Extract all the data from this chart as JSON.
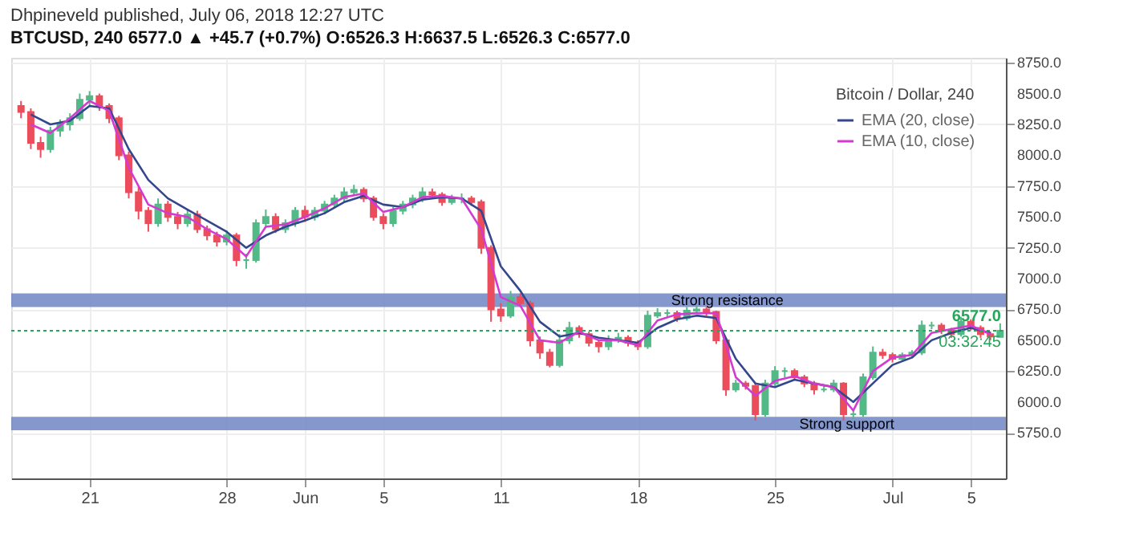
{
  "chart_data": {
    "type": "candlestick",
    "title": "Dhpineveld published, July 06, 2018 12:27 UTC",
    "subtitle": "BTCUSD, 240  6577.0 ▲ +45.7 (+0.7%)  O:6526.3 H:6637.5 L:6526.3 C:6577.0",
    "legend_title": "Bitcoin / Dollar, 240",
    "legend": "top right",
    "grid": true,
    "x": [
      "2018-05-17T12:00",
      "2018-05-18T00:00",
      "2018-05-18T12:00",
      "2018-05-19T00:00",
      "2018-05-19T12:00",
      "2018-05-20T00:00",
      "2018-05-20T12:00",
      "2018-05-21T00:00",
      "2018-05-21T12:00",
      "2018-05-22T00:00",
      "2018-05-22T12:00",
      "2018-05-23T00:00",
      "2018-05-23T12:00",
      "2018-05-24T00:00",
      "2018-05-24T12:00",
      "2018-05-25T00:00",
      "2018-05-25T12:00",
      "2018-05-26T00:00",
      "2018-05-26T12:00",
      "2018-05-27T00:00",
      "2018-05-27T12:00",
      "2018-05-28T00:00",
      "2018-05-28T12:00",
      "2018-05-29T00:00",
      "2018-05-29T12:00",
      "2018-05-30T00:00",
      "2018-05-30T12:00",
      "2018-05-31T00:00",
      "2018-05-31T12:00",
      "2018-06-01T00:00",
      "2018-06-01T12:00",
      "2018-06-02T00:00",
      "2018-06-02T12:00",
      "2018-06-03T00:00",
      "2018-06-03T12:00",
      "2018-06-04T00:00",
      "2018-06-04T12:00",
      "2018-06-05T00:00",
      "2018-06-05T12:00",
      "2018-06-06T00:00",
      "2018-06-06T12:00",
      "2018-06-07T00:00",
      "2018-06-07T12:00",
      "2018-06-08T00:00",
      "2018-06-08T12:00",
      "2018-06-09T00:00",
      "2018-06-09T12:00",
      "2018-06-10T00:00",
      "2018-06-10T12:00",
      "2018-06-11T00:00",
      "2018-06-11T12:00",
      "2018-06-12T00:00",
      "2018-06-12T12:00",
      "2018-06-13T00:00",
      "2018-06-13T12:00",
      "2018-06-14T00:00",
      "2018-06-14T12:00",
      "2018-06-15T00:00",
      "2018-06-15T12:00",
      "2018-06-16T00:00",
      "2018-06-16T12:00",
      "2018-06-17T00:00",
      "2018-06-17T12:00",
      "2018-06-18T00:00",
      "2018-06-18T12:00",
      "2018-06-19T00:00",
      "2018-06-19T12:00",
      "2018-06-20T00:00",
      "2018-06-20T12:00",
      "2018-06-21T00:00",
      "2018-06-21T12:00",
      "2018-06-22T00:00",
      "2018-06-22T12:00",
      "2018-06-23T00:00",
      "2018-06-23T12:00",
      "2018-06-24T00:00",
      "2018-06-24T12:00",
      "2018-06-25T00:00",
      "2018-06-25T12:00",
      "2018-06-26T00:00",
      "2018-06-26T12:00",
      "2018-06-27T00:00",
      "2018-06-27T12:00",
      "2018-06-28T00:00",
      "2018-06-28T12:00",
      "2018-06-29T00:00",
      "2018-06-29T12:00",
      "2018-06-30T00:00",
      "2018-06-30T12:00",
      "2018-07-01T00:00",
      "2018-07-01T12:00",
      "2018-07-02T00:00",
      "2018-07-02T12:00",
      "2018-07-03T00:00",
      "2018-07-03T12:00",
      "2018-07-04T00:00",
      "2018-07-04T12:00",
      "2018-07-05T00:00",
      "2018-07-05T12:00",
      "2018-07-06T00:00",
      "2018-07-06T12:00"
    ],
    "ohlc": [
      [
        8400,
        8440,
        8300,
        8350
      ],
      [
        8350,
        8380,
        8050,
        8100
      ],
      [
        8100,
        8150,
        7980,
        8050
      ],
      [
        8050,
        8230,
        8020,
        8200
      ],
      [
        8200,
        8290,
        8150,
        8250
      ],
      [
        8250,
        8340,
        8200,
        8300
      ],
      [
        8300,
        8500,
        8280,
        8450
      ],
      [
        8450,
        8520,
        8400,
        8480
      ],
      [
        8480,
        8500,
        8360,
        8400
      ],
      [
        8400,
        8420,
        8260,
        8300
      ],
      [
        8300,
        8320,
        7960,
        8000
      ],
      [
        8000,
        8030,
        7650,
        7700
      ],
      [
        7700,
        7740,
        7480,
        7550
      ],
      [
        7550,
        7580,
        7380,
        7450
      ],
      [
        7450,
        7650,
        7420,
        7600
      ],
      [
        7600,
        7630,
        7460,
        7500
      ],
      [
        7500,
        7540,
        7400,
        7450
      ],
      [
        7450,
        7560,
        7420,
        7520
      ],
      [
        7520,
        7550,
        7370,
        7400
      ],
      [
        7400,
        7430,
        7310,
        7350
      ],
      [
        7350,
        7380,
        7260,
        7300
      ],
      [
        7300,
        7390,
        7270,
        7350
      ],
      [
        7350,
        7370,
        7100,
        7150
      ],
      [
        7150,
        7200,
        7080,
        7150
      ],
      [
        7150,
        7480,
        7130,
        7450
      ],
      [
        7450,
        7560,
        7420,
        7500
      ],
      [
        7500,
        7530,
        7370,
        7400
      ],
      [
        7400,
        7480,
        7370,
        7450
      ],
      [
        7450,
        7580,
        7420,
        7550
      ],
      [
        7550,
        7590,
        7460,
        7500
      ],
      [
        7500,
        7580,
        7470,
        7550
      ],
      [
        7550,
        7630,
        7520,
        7600
      ],
      [
        7600,
        7680,
        7570,
        7650
      ],
      [
        7650,
        7740,
        7620,
        7700
      ],
      [
        7700,
        7760,
        7670,
        7720
      ],
      [
        7720,
        7740,
        7620,
        7650
      ],
      [
        7650,
        7670,
        7470,
        7500
      ],
      [
        7500,
        7530,
        7400,
        7450
      ],
      [
        7450,
        7580,
        7420,
        7550
      ],
      [
        7550,
        7630,
        7520,
        7600
      ],
      [
        7600,
        7680,
        7570,
        7650
      ],
      [
        7650,
        7740,
        7620,
        7700
      ],
      [
        7700,
        7730,
        7650,
        7680
      ],
      [
        7680,
        7700,
        7590,
        7620
      ],
      [
        7620,
        7680,
        7600,
        7650
      ],
      [
        7650,
        7690,
        7610,
        7650
      ],
      [
        7650,
        7670,
        7590,
        7620
      ],
      [
        7620,
        7640,
        7200,
        7250
      ],
      [
        7250,
        7270,
        6650,
        6750
      ],
      [
        6750,
        6800,
        6650,
        6700
      ],
      [
        6700,
        6900,
        6680,
        6850
      ],
      [
        6850,
        6880,
        6770,
        6800
      ],
      [
        6800,
        6820,
        6450,
        6500
      ],
      [
        6500,
        6530,
        6350,
        6400
      ],
      [
        6400,
        6430,
        6280,
        6300
      ],
      [
        6300,
        6550,
        6280,
        6500
      ],
      [
        6500,
        6650,
        6470,
        6600
      ],
      [
        6600,
        6620,
        6520,
        6550
      ],
      [
        6550,
        6570,
        6450,
        6480
      ],
      [
        6480,
        6500,
        6400,
        6450
      ],
      [
        6450,
        6540,
        6420,
        6500
      ],
      [
        6500,
        6560,
        6480,
        6520
      ],
      [
        6520,
        6540,
        6450,
        6480
      ],
      [
        6480,
        6500,
        6420,
        6450
      ],
      [
        6450,
        6740,
        6430,
        6700
      ],
      [
        6700,
        6760,
        6680,
        6720
      ],
      [
        6720,
        6750,
        6690,
        6720
      ],
      [
        6720,
        6740,
        6650,
        6680
      ],
      [
        6680,
        6770,
        6660,
        6740
      ],
      [
        6740,
        6780,
        6720,
        6750
      ],
      [
        6750,
        6770,
        6700,
        6730
      ],
      [
        6730,
        6740,
        6470,
        6500
      ],
      [
        6500,
        6520,
        6050,
        6100
      ],
      [
        6100,
        6180,
        6080,
        6150
      ],
      [
        6150,
        6170,
        6100,
        6130
      ],
      [
        6130,
        6150,
        5850,
        5900
      ],
      [
        5900,
        6180,
        5880,
        6150
      ],
      [
        6150,
        6290,
        6130,
        6250
      ],
      [
        6250,
        6280,
        6200,
        6250
      ],
      [
        6250,
        6270,
        6180,
        6200
      ],
      [
        6200,
        6220,
        6120,
        6150
      ],
      [
        6150,
        6170,
        6060,
        6100
      ],
      [
        6100,
        6140,
        6080,
        6100
      ],
      [
        6100,
        6180,
        6080,
        6150
      ],
      [
        6150,
        6160,
        5850,
        5900
      ],
      [
        5900,
        5930,
        5860,
        5900
      ],
      [
        5900,
        6230,
        5880,
        6200
      ],
      [
        6200,
        6450,
        6180,
        6400
      ],
      [
        6400,
        6430,
        6350,
        6380
      ],
      [
        6380,
        6400,
        6320,
        6350
      ],
      [
        6350,
        6400,
        6330,
        6380
      ],
      [
        6380,
        6420,
        6360,
        6400
      ],
      [
        6400,
        6660,
        6380,
        6620
      ],
      [
        6620,
        6650,
        6590,
        6620
      ],
      [
        6620,
        6640,
        6550,
        6580
      ],
      [
        6580,
        6600,
        6520,
        6550
      ],
      [
        6550,
        6690,
        6530,
        6650
      ],
      [
        6650,
        6670,
        6580,
        6600
      ],
      [
        6600,
        6620,
        6520,
        6550
      ],
      [
        6550,
        6570,
        6500,
        6530
      ],
      [
        6526.3,
        6637.5,
        6526.3,
        6577.0
      ]
    ],
    "series": [
      {
        "name": "EMA (20, close)",
        "type": "line",
        "color": "#34468c",
        "x": [
          "2018-05-18",
          "2018-05-19",
          "2018-05-20",
          "2018-05-21",
          "2018-05-22",
          "2018-05-23",
          "2018-05-24",
          "2018-05-25",
          "2018-05-26",
          "2018-05-27",
          "2018-05-28",
          "2018-05-29",
          "2018-05-30",
          "2018-05-31",
          "2018-06-01",
          "2018-06-02",
          "2018-06-03",
          "2018-06-04",
          "2018-06-05",
          "2018-06-06",
          "2018-06-07",
          "2018-06-08",
          "2018-06-09",
          "2018-06-10",
          "2018-06-11",
          "2018-06-12",
          "2018-06-13",
          "2018-06-14",
          "2018-06-15",
          "2018-06-16",
          "2018-06-17",
          "2018-06-18",
          "2018-06-19",
          "2018-06-20",
          "2018-06-21",
          "2018-06-22",
          "2018-06-23",
          "2018-06-24",
          "2018-06-25",
          "2018-06-26",
          "2018-06-27",
          "2018-06-28",
          "2018-06-29",
          "2018-06-30",
          "2018-07-01",
          "2018-07-02",
          "2018-07-03",
          "2018-07-04",
          "2018-07-05",
          "2018-07-06"
        ],
        "values": [
          8330,
          8250,
          8280,
          8400,
          8380,
          8050,
          7800,
          7650,
          7560,
          7470,
          7380,
          7250,
          7350,
          7420,
          7470,
          7530,
          7620,
          7670,
          7600,
          7580,
          7640,
          7660,
          7650,
          7550,
          7100,
          6900,
          6650,
          6530,
          6560,
          6520,
          6500,
          6480,
          6600,
          6670,
          6700,
          6680,
          6350,
          6150,
          6120,
          6180,
          6150,
          6120,
          6000,
          6150,
          6300,
          6360,
          6500,
          6560,
          6600,
          6560
        ]
      },
      {
        "name": "EMA (10, close)",
        "type": "line",
        "color": "#d23ad2",
        "x": [
          "2018-05-18",
          "2018-05-19",
          "2018-05-20",
          "2018-05-21",
          "2018-05-22",
          "2018-05-23",
          "2018-05-24",
          "2018-05-25",
          "2018-05-26",
          "2018-05-27",
          "2018-05-28",
          "2018-05-29",
          "2018-05-30",
          "2018-05-31",
          "2018-06-01",
          "2018-06-02",
          "2018-06-03",
          "2018-06-04",
          "2018-06-05",
          "2018-06-06",
          "2018-06-07",
          "2018-06-08",
          "2018-06-09",
          "2018-06-10",
          "2018-06-11",
          "2018-06-12",
          "2018-06-13",
          "2018-06-14",
          "2018-06-15",
          "2018-06-16",
          "2018-06-17",
          "2018-06-18",
          "2018-06-19",
          "2018-06-20",
          "2018-06-21",
          "2018-06-22",
          "2018-06-23",
          "2018-06-24",
          "2018-06-25",
          "2018-06-26",
          "2018-06-27",
          "2018-06-28",
          "2018-06-29",
          "2018-06-30",
          "2018-07-01",
          "2018-07-02",
          "2018-07-03",
          "2018-07-04",
          "2018-07-05",
          "2018-07-06"
        ],
        "values": [
          8250,
          8180,
          8300,
          8440,
          8360,
          7900,
          7600,
          7530,
          7500,
          7400,
          7320,
          7180,
          7420,
          7440,
          7500,
          7570,
          7660,
          7690,
          7540,
          7580,
          7660,
          7670,
          7650,
          7400,
          6850,
          6780,
          6500,
          6480,
          6570,
          6500,
          6500,
          6460,
          6660,
          6710,
          6720,
          6720,
          6200,
          6050,
          6170,
          6210,
          6150,
          6120,
          5930,
          6250,
          6360,
          6380,
          6560,
          6590,
          6620,
          6550
        ]
      }
    ],
    "bands": [
      {
        "axis": "y",
        "from": 6770,
        "to": 6880,
        "label": "Strong resistance",
        "color": "#6f86c6"
      },
      {
        "axis": "y",
        "from": 5770,
        "to": 5880,
        "label": "Strong support",
        "color": "#6f86c6"
      }
    ],
    "ref_lines": [
      {
        "axis": "y",
        "value": 6577,
        "label": "6577.0",
        "color": "#26a65b",
        "line_style": "dotted"
      }
    ],
    "annotations": [
      "03:32:45"
    ],
    "xlim": [
      "2018-05-17T00:00",
      "2018-07-06T19:00"
    ],
    "xticks": [
      {
        "value": "2018-05-21",
        "label": "21"
      },
      {
        "value": "2018-05-28",
        "label": "28"
      },
      {
        "value": "2018-06-01",
        "label": "Jun"
      },
      {
        "value": "2018-06-05",
        "label": "5"
      },
      {
        "value": "2018-06-11",
        "label": "11"
      },
      {
        "value": "2018-06-18",
        "label": "18"
      },
      {
        "value": "2018-06-25",
        "label": "25"
      },
      {
        "value": "2018-07-01",
        "label": "Jul"
      },
      {
        "value": "2018-07-05",
        "label": "5"
      }
    ],
    "ylim": [
      5380,
      8790
    ],
    "yticks": [
      {
        "value": 5750,
        "label": "5750.0"
      },
      {
        "value": 6000,
        "label": "6000.0"
      },
      {
        "value": 6250,
        "label": "6250.0"
      },
      {
        "value": 6500,
        "label": "6500.0"
      },
      {
        "value": 6750,
        "label": "6750.0"
      },
      {
        "value": 7000,
        "label": "7000.0"
      },
      {
        "value": 7250,
        "label": "7250.0"
      },
      {
        "value": 7500,
        "label": "7500.0"
      },
      {
        "value": 7750,
        "label": "7750.0"
      },
      {
        "value": 8000,
        "label": "8000.0"
      },
      {
        "value": 8250,
        "label": "8250.0"
      },
      {
        "value": 8500,
        "label": "8500.0"
      },
      {
        "value": 8750,
        "label": "8750.0"
      }
    ]
  }
}
